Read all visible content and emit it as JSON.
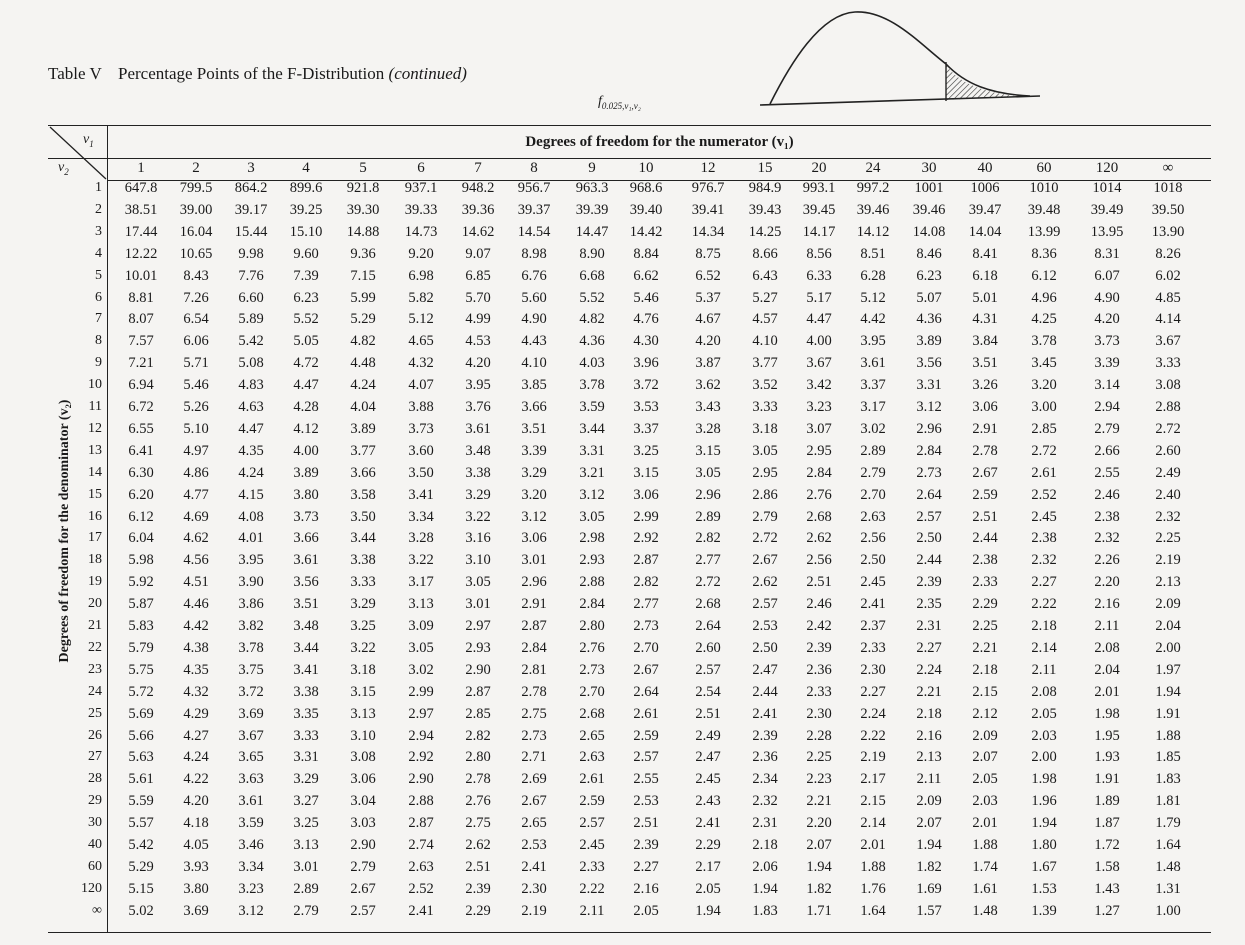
{
  "caption": {
    "number": "Table V",
    "text": "Percentage Points of the F-Distribution",
    "continued": "(continued)"
  },
  "f_symbol": {
    "main": "f",
    "subscript": "0.025,v₁,v₂"
  },
  "headers": {
    "v1_label": "v",
    "v1_sub": "1",
    "v2_label": "v",
    "v2_sub": "2",
    "numerator": "Degrees of freedom for the numerator (v₁)",
    "denominator": "Degrees of freedom for the denominator (v₂)"
  },
  "columns": [
    "1",
    "2",
    "3",
    "4",
    "5",
    "6",
    "7",
    "8",
    "9",
    "10",
    "12",
    "15",
    "20",
    "24",
    "30",
    "40",
    "60",
    "120",
    "∞"
  ],
  "rows": [
    {
      "df": "1",
      "values": [
        "647.8",
        "799.5",
        "864.2",
        "899.6",
        "921.8",
        "937.1",
        "948.2",
        "956.7",
        "963.3",
        "968.6",
        "976.7",
        "984.9",
        "993.1",
        "997.2",
        "1001",
        "1006",
        "1010",
        "1014",
        "1018"
      ]
    },
    {
      "df": "2",
      "values": [
        "38.51",
        "39.00",
        "39.17",
        "39.25",
        "39.30",
        "39.33",
        "39.36",
        "39.37",
        "39.39",
        "39.40",
        "39.41",
        "39.43",
        "39.45",
        "39.46",
        "39.46",
        "39.47",
        "39.48",
        "39.49",
        "39.50"
      ]
    },
    {
      "df": "3",
      "values": [
        "17.44",
        "16.04",
        "15.44",
        "15.10",
        "14.88",
        "14.73",
        "14.62",
        "14.54",
        "14.47",
        "14.42",
        "14.34",
        "14.25",
        "14.17",
        "14.12",
        "14.08",
        "14.04",
        "13.99",
        "13.95",
        "13.90"
      ]
    },
    {
      "df": "4",
      "values": [
        "12.22",
        "10.65",
        "9.98",
        "9.60",
        "9.36",
        "9.20",
        "9.07",
        "8.98",
        "8.90",
        "8.84",
        "8.75",
        "8.66",
        "8.56",
        "8.51",
        "8.46",
        "8.41",
        "8.36",
        "8.31",
        "8.26"
      ]
    },
    {
      "df": "5",
      "values": [
        "10.01",
        "8.43",
        "7.76",
        "7.39",
        "7.15",
        "6.98",
        "6.85",
        "6.76",
        "6.68",
        "6.62",
        "6.52",
        "6.43",
        "6.33",
        "6.28",
        "6.23",
        "6.18",
        "6.12",
        "6.07",
        "6.02"
      ]
    },
    {
      "df": "6",
      "values": [
        "8.81",
        "7.26",
        "6.60",
        "6.23",
        "5.99",
        "5.82",
        "5.70",
        "5.60",
        "5.52",
        "5.46",
        "5.37",
        "5.27",
        "5.17",
        "5.12",
        "5.07",
        "5.01",
        "4.96",
        "4.90",
        "4.85"
      ]
    },
    {
      "df": "7",
      "values": [
        "8.07",
        "6.54",
        "5.89",
        "5.52",
        "5.29",
        "5.12",
        "4.99",
        "4.90",
        "4.82",
        "4.76",
        "4.67",
        "4.57",
        "4.47",
        "4.42",
        "4.36",
        "4.31",
        "4.25",
        "4.20",
        "4.14"
      ]
    },
    {
      "df": "8",
      "values": [
        "7.57",
        "6.06",
        "5.42",
        "5.05",
        "4.82",
        "4.65",
        "4.53",
        "4.43",
        "4.36",
        "4.30",
        "4.20",
        "4.10",
        "4.00",
        "3.95",
        "3.89",
        "3.84",
        "3.78",
        "3.73",
        "3.67"
      ]
    },
    {
      "df": "9",
      "values": [
        "7.21",
        "5.71",
        "5.08",
        "4.72",
        "4.48",
        "4.32",
        "4.20",
        "4.10",
        "4.03",
        "3.96",
        "3.87",
        "3.77",
        "3.67",
        "3.61",
        "3.56",
        "3.51",
        "3.45",
        "3.39",
        "3.33"
      ]
    },
    {
      "df": "10",
      "values": [
        "6.94",
        "5.46",
        "4.83",
        "4.47",
        "4.24",
        "4.07",
        "3.95",
        "3.85",
        "3.78",
        "3.72",
        "3.62",
        "3.52",
        "3.42",
        "3.37",
        "3.31",
        "3.26",
        "3.20",
        "3.14",
        "3.08"
      ]
    },
    {
      "df": "11",
      "values": [
        "6.72",
        "5.26",
        "4.63",
        "4.28",
        "4.04",
        "3.88",
        "3.76",
        "3.66",
        "3.59",
        "3.53",
        "3.43",
        "3.33",
        "3.23",
        "3.17",
        "3.12",
        "3.06",
        "3.00",
        "2.94",
        "2.88"
      ]
    },
    {
      "df": "12",
      "values": [
        "6.55",
        "5.10",
        "4.47",
        "4.12",
        "3.89",
        "3.73",
        "3.61",
        "3.51",
        "3.44",
        "3.37",
        "3.28",
        "3.18",
        "3.07",
        "3.02",
        "2.96",
        "2.91",
        "2.85",
        "2.79",
        "2.72"
      ]
    },
    {
      "df": "13",
      "values": [
        "6.41",
        "4.97",
        "4.35",
        "4.00",
        "3.77",
        "3.60",
        "3.48",
        "3.39",
        "3.31",
        "3.25",
        "3.15",
        "3.05",
        "2.95",
        "2.89",
        "2.84",
        "2.78",
        "2.72",
        "2.66",
        "2.60"
      ]
    },
    {
      "df": "14",
      "values": [
        "6.30",
        "4.86",
        "4.24",
        "3.89",
        "3.66",
        "3.50",
        "3.38",
        "3.29",
        "3.21",
        "3.15",
        "3.05",
        "2.95",
        "2.84",
        "2.79",
        "2.73",
        "2.67",
        "2.61",
        "2.55",
        "2.49"
      ]
    },
    {
      "df": "15",
      "values": [
        "6.20",
        "4.77",
        "4.15",
        "3.80",
        "3.58",
        "3.41",
        "3.29",
        "3.20",
        "3.12",
        "3.06",
        "2.96",
        "2.86",
        "2.76",
        "2.70",
        "2.64",
        "2.59",
        "2.52",
        "2.46",
        "2.40"
      ]
    },
    {
      "df": "16",
      "values": [
        "6.12",
        "4.69",
        "4.08",
        "3.73",
        "3.50",
        "3.34",
        "3.22",
        "3.12",
        "3.05",
        "2.99",
        "2.89",
        "2.79",
        "2.68",
        "2.63",
        "2.57",
        "2.51",
        "2.45",
        "2.38",
        "2.32"
      ]
    },
    {
      "df": "17",
      "values": [
        "6.04",
        "4.62",
        "4.01",
        "3.66",
        "3.44",
        "3.28",
        "3.16",
        "3.06",
        "2.98",
        "2.92",
        "2.82",
        "2.72",
        "2.62",
        "2.56",
        "2.50",
        "2.44",
        "2.38",
        "2.32",
        "2.25"
      ]
    },
    {
      "df": "18",
      "values": [
        "5.98",
        "4.56",
        "3.95",
        "3.61",
        "3.38",
        "3.22",
        "3.10",
        "3.01",
        "2.93",
        "2.87",
        "2.77",
        "2.67",
        "2.56",
        "2.50",
        "2.44",
        "2.38",
        "2.32",
        "2.26",
        "2.19"
      ]
    },
    {
      "df": "19",
      "values": [
        "5.92",
        "4.51",
        "3.90",
        "3.56",
        "3.33",
        "3.17",
        "3.05",
        "2.96",
        "2.88",
        "2.82",
        "2.72",
        "2.62",
        "2.51",
        "2.45",
        "2.39",
        "2.33",
        "2.27",
        "2.20",
        "2.13"
      ]
    },
    {
      "df": "20",
      "values": [
        "5.87",
        "4.46",
        "3.86",
        "3.51",
        "3.29",
        "3.13",
        "3.01",
        "2.91",
        "2.84",
        "2.77",
        "2.68",
        "2.57",
        "2.46",
        "2.41",
        "2.35",
        "2.29",
        "2.22",
        "2.16",
        "2.09"
      ]
    },
    {
      "df": "21",
      "values": [
        "5.83",
        "4.42",
        "3.82",
        "3.48",
        "3.25",
        "3.09",
        "2.97",
        "2.87",
        "2.80",
        "2.73",
        "2.64",
        "2.53",
        "2.42",
        "2.37",
        "2.31",
        "2.25",
        "2.18",
        "2.11",
        "2.04"
      ]
    },
    {
      "df": "22",
      "values": [
        "5.79",
        "4.38",
        "3.78",
        "3.44",
        "3.22",
        "3.05",
        "2.93",
        "2.84",
        "2.76",
        "2.70",
        "2.60",
        "2.50",
        "2.39",
        "2.33",
        "2.27",
        "2.21",
        "2.14",
        "2.08",
        "2.00"
      ]
    },
    {
      "df": "23",
      "values": [
        "5.75",
        "4.35",
        "3.75",
        "3.41",
        "3.18",
        "3.02",
        "2.90",
        "2.81",
        "2.73",
        "2.67",
        "2.57",
        "2.47",
        "2.36",
        "2.30",
        "2.24",
        "2.18",
        "2.11",
        "2.04",
        "1.97"
      ]
    },
    {
      "df": "24",
      "values": [
        "5.72",
        "4.32",
        "3.72",
        "3.38",
        "3.15",
        "2.99",
        "2.87",
        "2.78",
        "2.70",
        "2.64",
        "2.54",
        "2.44",
        "2.33",
        "2.27",
        "2.21",
        "2.15",
        "2.08",
        "2.01",
        "1.94"
      ]
    },
    {
      "df": "25",
      "values": [
        "5.69",
        "4.29",
        "3.69",
        "3.35",
        "3.13",
        "2.97",
        "2.85",
        "2.75",
        "2.68",
        "2.61",
        "2.51",
        "2.41",
        "2.30",
        "2.24",
        "2.18",
        "2.12",
        "2.05",
        "1.98",
        "1.91"
      ]
    },
    {
      "df": "26",
      "values": [
        "5.66",
        "4.27",
        "3.67",
        "3.33",
        "3.10",
        "2.94",
        "2.82",
        "2.73",
        "2.65",
        "2.59",
        "2.49",
        "2.39",
        "2.28",
        "2.22",
        "2.16",
        "2.09",
        "2.03",
        "1.95",
        "1.88"
      ]
    },
    {
      "df": "27",
      "values": [
        "5.63",
        "4.24",
        "3.65",
        "3.31",
        "3.08",
        "2.92",
        "2.80",
        "2.71",
        "2.63",
        "2.57",
        "2.47",
        "2.36",
        "2.25",
        "2.19",
        "2.13",
        "2.07",
        "2.00",
        "1.93",
        "1.85"
      ]
    },
    {
      "df": "28",
      "values": [
        "5.61",
        "4.22",
        "3.63",
        "3.29",
        "3.06",
        "2.90",
        "2.78",
        "2.69",
        "2.61",
        "2.55",
        "2.45",
        "2.34",
        "2.23",
        "2.17",
        "2.11",
        "2.05",
        "1.98",
        "1.91",
        "1.83"
      ]
    },
    {
      "df": "29",
      "values": [
        "5.59",
        "4.20",
        "3.61",
        "3.27",
        "3.04",
        "2.88",
        "2.76",
        "2.67",
        "2.59",
        "2.53",
        "2.43",
        "2.32",
        "2.21",
        "2.15",
        "2.09",
        "2.03",
        "1.96",
        "1.89",
        "1.81"
      ]
    },
    {
      "df": "30",
      "values": [
        "5.57",
        "4.18",
        "3.59",
        "3.25",
        "3.03",
        "2.87",
        "2.75",
        "2.65",
        "2.57",
        "2.51",
        "2.41",
        "2.31",
        "2.20",
        "2.14",
        "2.07",
        "2.01",
        "1.94",
        "1.87",
        "1.79"
      ]
    },
    {
      "df": "40",
      "values": [
        "5.42",
        "4.05",
        "3.46",
        "3.13",
        "2.90",
        "2.74",
        "2.62",
        "2.53",
        "2.45",
        "2.39",
        "2.29",
        "2.18",
        "2.07",
        "2.01",
        "1.94",
        "1.88",
        "1.80",
        "1.72",
        "1.64"
      ]
    },
    {
      "df": "60",
      "values": [
        "5.29",
        "3.93",
        "3.34",
        "3.01",
        "2.79",
        "2.63",
        "2.51",
        "2.41",
        "2.33",
        "2.27",
        "2.17",
        "2.06",
        "1.94",
        "1.88",
        "1.82",
        "1.74",
        "1.67",
        "1.58",
        "1.48"
      ]
    },
    {
      "df": "120",
      "values": [
        "5.15",
        "3.80",
        "3.23",
        "2.89",
        "2.67",
        "2.52",
        "2.39",
        "2.30",
        "2.22",
        "2.16",
        "2.05",
        "1.94",
        "1.82",
        "1.76",
        "1.69",
        "1.61",
        "1.53",
        "1.43",
        "1.31"
      ]
    },
    {
      "df": "∞",
      "values": [
        "5.02",
        "3.69",
        "3.12",
        "2.79",
        "2.57",
        "2.41",
        "2.29",
        "2.19",
        "2.11",
        "2.05",
        "1.94",
        "1.83",
        "1.71",
        "1.64",
        "1.57",
        "1.48",
        "1.39",
        "1.27",
        "1.00"
      ]
    }
  ]
}
